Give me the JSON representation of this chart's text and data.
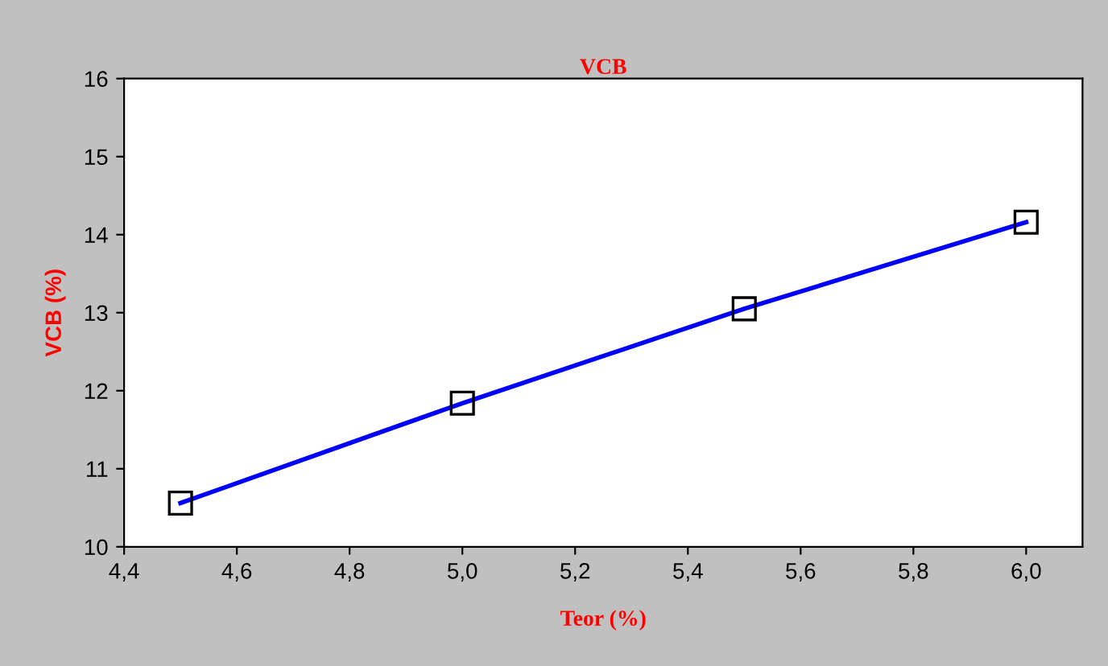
{
  "chart_data": {
    "type": "line",
    "title": "VCB",
    "xlabel": "Teor (%)",
    "ylabel": "VCB (%)",
    "x": [
      4.5,
      5.0,
      5.5,
      6.0
    ],
    "series": [
      {
        "color": "#0000ff",
        "values": [
          10.56,
          11.84,
          13.05,
          14.16
        ]
      }
    ],
    "marker": "square",
    "xlim": [
      4.4,
      6.1
    ],
    "xticks": [
      {
        "value": 4.4,
        "label": "4,4"
      },
      {
        "value": 4.6,
        "label": "4,6"
      },
      {
        "value": 4.8,
        "label": "4,8"
      },
      {
        "value": 5.0,
        "label": "5,0"
      },
      {
        "value": 5.2,
        "label": "5,2"
      },
      {
        "value": 5.4,
        "label": "5,4"
      },
      {
        "value": 5.6,
        "label": "5,6"
      },
      {
        "value": 5.8,
        "label": "5,8"
      },
      {
        "value": 6.0,
        "label": "6,0"
      }
    ],
    "ylim": [
      10,
      16
    ],
    "yticks": [
      10,
      11,
      12,
      13,
      14,
      15,
      16
    ],
    "grid": false,
    "legend": false
  }
}
